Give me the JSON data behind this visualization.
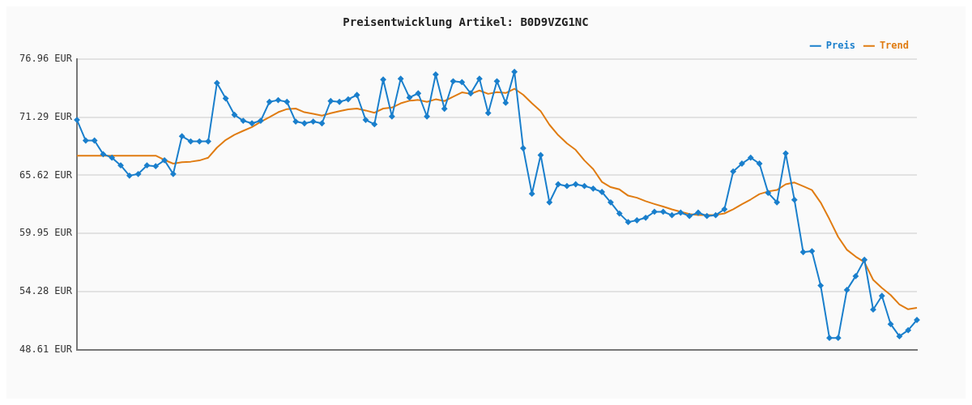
{
  "chart_data": {
    "type": "line",
    "title": "Preisentwicklung Artikel: B0D9VZG1NC",
    "categories": [
      null,
      null,
      null,
      null,
      null,
      null,
      null,
      null,
      null,
      null,
      null,
      null,
      null,
      null,
      null,
      null,
      null,
      null,
      null,
      null,
      null,
      null,
      null,
      null,
      null,
      null,
      null,
      null,
      null,
      null,
      null,
      null,
      null,
      null,
      null,
      null,
      null,
      null,
      null,
      null,
      null,
      null,
      null,
      null,
      null,
      null,
      null,
      null,
      null,
      null,
      null,
      null,
      null,
      null,
      null,
      null,
      null,
      null,
      null,
      null,
      null,
      null,
      null,
      null,
      null,
      null,
      null,
      null,
      null,
      null,
      null,
      null,
      null,
      null,
      null,
      null,
      null,
      null,
      null,
      null,
      null,
      null,
      null,
      null,
      null,
      null,
      null,
      null,
      null,
      null,
      null,
      null,
      null,
      null,
      null,
      null,
      null
    ],
    "series": [
      {
        "name": "Preis",
        "color": "#1a7fcc",
        "marker": "diamond",
        "values": [
          71.02,
          69.01,
          69.01,
          67.68,
          67.34,
          66.59,
          65.59,
          65.75,
          66.59,
          66.51,
          67.09,
          65.75,
          69.43,
          68.93,
          68.93,
          68.93,
          74.62,
          73.11,
          71.52,
          70.94,
          70.69,
          70.94,
          72.78,
          72.95,
          72.78,
          70.86,
          70.69,
          70.86,
          70.69,
          72.86,
          72.78,
          73.03,
          73.45,
          71.02,
          70.6,
          74.95,
          71.36,
          75.04,
          73.2,
          73.61,
          71.36,
          75.45,
          72.11,
          74.79,
          74.7,
          73.61,
          75.04,
          71.69,
          74.79,
          72.69,
          75.71,
          68.26,
          63.83,
          67.59,
          62.99,
          64.75,
          64.58,
          64.75,
          64.58,
          64.33,
          64.0,
          62.99,
          61.9,
          61.07,
          61.24,
          61.49,
          62.07,
          62.07,
          61.74,
          61.99,
          61.66,
          61.99,
          61.66,
          61.74,
          62.32,
          66.0,
          66.76,
          67.34,
          66.76,
          63.91,
          62.99,
          67.76,
          63.24,
          58.14,
          58.23,
          54.88,
          49.78,
          49.78,
          54.46,
          55.8,
          57.39,
          52.54,
          53.88,
          51.12,
          49.94,
          50.53,
          51.53
        ]
      },
      {
        "name": "Trend",
        "color": "#e07c12",
        "marker": "none",
        "values": [
          67.54,
          67.54,
          67.54,
          67.54,
          67.54,
          67.54,
          67.54,
          67.54,
          67.54,
          67.54,
          67.12,
          66.76,
          66.9,
          66.95,
          67.07,
          67.34,
          68.32,
          69.07,
          69.58,
          69.96,
          70.33,
          70.83,
          71.3,
          71.77,
          72.08,
          72.13,
          71.77,
          71.61,
          71.44,
          71.67,
          71.88,
          72.05,
          72.13,
          71.94,
          71.72,
          72.13,
          72.22,
          72.64,
          72.89,
          72.97,
          72.78,
          73.03,
          72.86,
          73.28,
          73.7,
          73.56,
          73.89,
          73.56,
          73.72,
          73.64,
          74.06,
          73.47,
          72.64,
          71.88,
          70.55,
          69.54,
          68.74,
          68.1,
          67.07,
          66.23,
          64.98,
          64.47,
          64.25,
          63.64,
          63.44,
          63.1,
          62.83,
          62.58,
          62.3,
          62.07,
          61.85,
          61.76,
          61.76,
          61.76,
          61.91,
          62.32,
          62.8,
          63.27,
          63.79,
          64.05,
          64.19,
          64.75,
          64.92,
          64.56,
          64.19,
          62.97,
          61.35,
          59.62,
          58.37,
          57.7,
          57.16,
          55.44,
          54.65,
          53.96,
          53.04,
          52.57,
          52.71
        ]
      }
    ],
    "ylim": [
      48.61,
      76.96
    ],
    "yticks": [
      {
        "value": 48.61,
        "label": "48.61 EUR"
      },
      {
        "value": 54.28,
        "label": "54.28 EUR"
      },
      {
        "value": 59.95,
        "label": "59.95 EUR"
      },
      {
        "value": 65.62,
        "label": "65.62 EUR"
      },
      {
        "value": 71.29,
        "label": "71.29 EUR"
      },
      {
        "value": 76.96,
        "label": "76.96 EUR"
      }
    ],
    "grid": "y",
    "legend": "top right",
    "tick_labels": "y"
  }
}
